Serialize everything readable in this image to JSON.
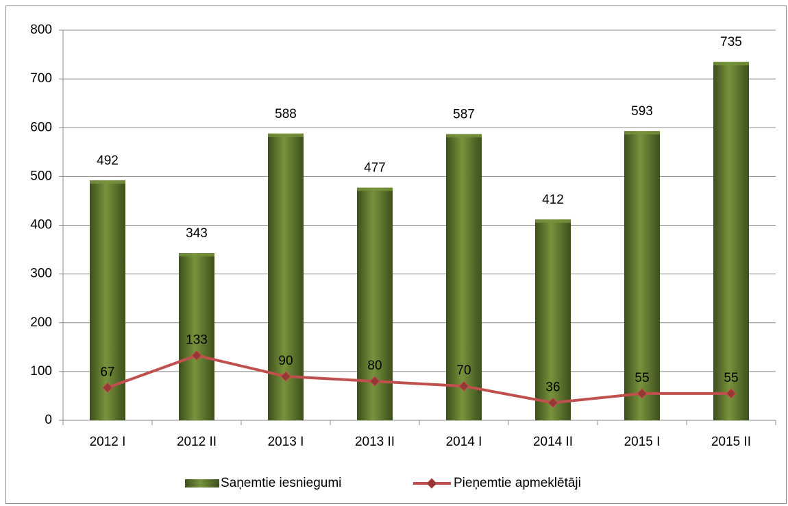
{
  "chart_data": {
    "type": "bar",
    "categories": [
      "2012 I",
      "2012 II",
      "2013 I",
      "2013 II",
      "2014 I",
      "2014 II",
      "2015 I",
      "2015 II"
    ],
    "series": [
      {
        "name": "Saņemtie iesniegumi",
        "type": "bar",
        "color": "#77933c",
        "values": [
          492,
          343,
          588,
          477,
          587,
          412,
          593,
          735
        ]
      },
      {
        "name": "Pieņemtie apmeklētāji",
        "type": "line",
        "color": "#c0504d",
        "values": [
          67,
          133,
          90,
          80,
          70,
          36,
          55,
          55
        ]
      }
    ],
    "ylim": [
      0,
      800
    ],
    "yticks": [
      0,
      100,
      200,
      300,
      400,
      500,
      600,
      700,
      800
    ],
    "grid": true,
    "legend": "bottom"
  }
}
